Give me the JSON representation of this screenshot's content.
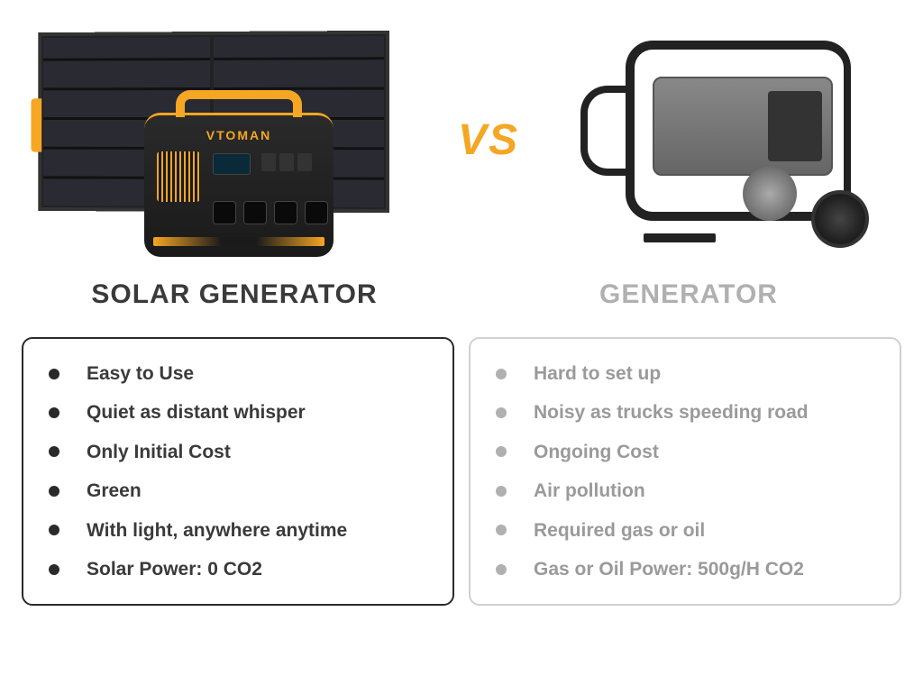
{
  "vs_label": "VS",
  "accent_color": "#f5a623",
  "left": {
    "title": "SOLAR GENERATOR",
    "brand": "VTOMAN",
    "title_color": "#3a3a3a",
    "bullet_color": "#2a2a2a",
    "text_color": "#3a3a3a",
    "border_color": "#2a2a2a",
    "items": [
      "Easy to Use",
      "Quiet as distant whisper",
      "Only Initial Cost",
      "Green",
      "With light, anywhere anytime",
      "Solar Power: 0 CO2"
    ]
  },
  "right": {
    "title": "GENERATOR",
    "title_color": "#b0b0b0",
    "bullet_color": "#b0b0b0",
    "text_color": "#9a9a9a",
    "border_color": "#d0d0d0",
    "items": [
      "Hard to set up",
      "Noisy as trucks speeding road",
      "Ongoing Cost",
      "Air pollution",
      "Required gas or oil",
      "Gas or Oil Power: 500g/H CO2"
    ]
  }
}
